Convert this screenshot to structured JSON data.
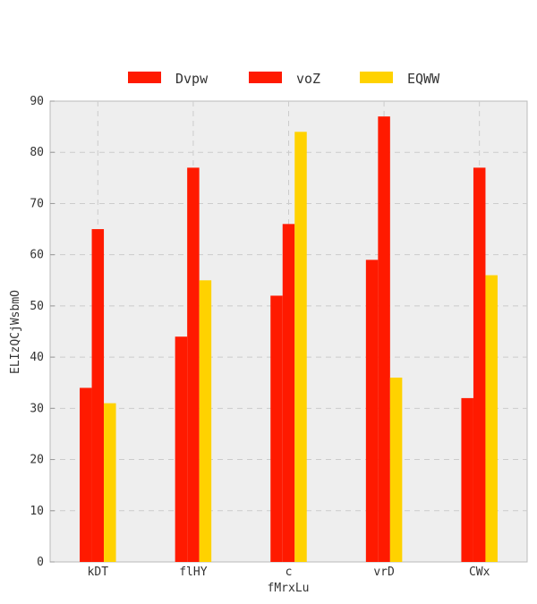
{
  "chart_data": {
    "type": "bar",
    "title": "",
    "xlabel": "fMrxLu",
    "ylabel": "ELIzQCjWsbmO",
    "categories": [
      "kDT",
      "flHY",
      "c",
      "vrD",
      "CWx"
    ],
    "series": [
      {
        "name": "Dvpw",
        "color": "#ff1a00",
        "values": [
          34,
          44,
          52,
          59,
          32
        ]
      },
      {
        "name": "voZ",
        "color": "#ff1a00",
        "values": [
          65,
          77,
          66,
          87,
          77
        ]
      },
      {
        "name": "EQWW",
        "color": "#ffd200",
        "values": [
          31,
          55,
          84,
          36,
          56
        ]
      }
    ],
    "ylim": [
      0,
      90
    ],
    "yticks": [
      0,
      10,
      20,
      30,
      40,
      50,
      60,
      70,
      80,
      90
    ],
    "grid": true,
    "legend_position": "top-center",
    "background": "#eeeeee"
  }
}
